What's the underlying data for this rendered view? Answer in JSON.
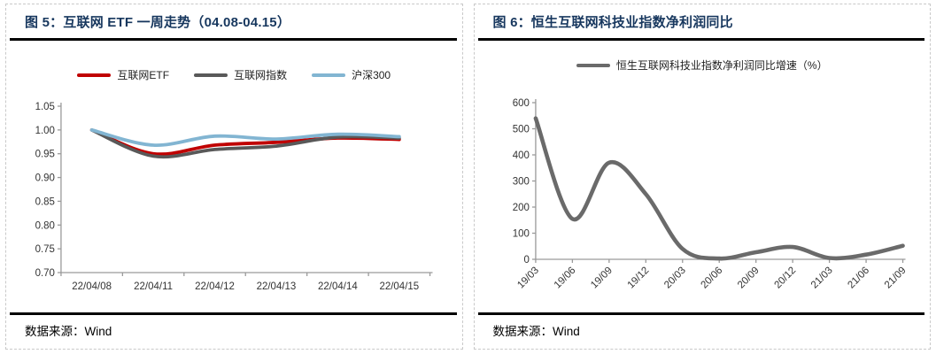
{
  "panels": [
    {
      "title": "图 5：互联网 ETF 一周走势（04.08-04.15）",
      "source_label": "数据来源：",
      "source_value": "Wind"
    },
    {
      "title": "图 6：恒生互联网科技业指数净利润同比",
      "source_label": "数据来源：",
      "source_value": "Wind"
    }
  ],
  "colors": {
    "title_navy": "#17375E",
    "axis_gray": "#9a9a9a",
    "tick_label": "#333333",
    "divider_black": "#000000",
    "etf_red": "#C00000",
    "index_gray": "#595959",
    "hs300_blue": "#82B5D2",
    "hsti_line_gray": "#6a6a6a"
  },
  "chart_data": [
    {
      "type": "line",
      "title": "互联网 ETF 一周走势（04.08-04.15）",
      "categories": [
        "22/04/08",
        "22/04/11",
        "22/04/12",
        "22/04/13",
        "22/04/14",
        "22/04/15"
      ],
      "series": [
        {
          "name": "互联网ETF",
          "color": "#C00000",
          "values": [
            1.0,
            0.95,
            0.968,
            0.974,
            0.983,
            0.98
          ]
        },
        {
          "name": "互联网指数",
          "color": "#595959",
          "values": [
            1.0,
            0.945,
            0.959,
            0.966,
            0.985,
            0.983
          ]
        },
        {
          "name": "沪深300",
          "color": "#82B5D2",
          "values": [
            1.0,
            0.968,
            0.987,
            0.981,
            0.991,
            0.986
          ]
        }
      ],
      "ylim": [
        0.7,
        1.05
      ],
      "ytick_step": 0.05,
      "ytick_decimals": 2,
      "x_mode": "between",
      "x_label_rotation": 0,
      "grid": false,
      "smooth": true,
      "line_width": 3.8,
      "legend_position": "top"
    },
    {
      "type": "line",
      "title": "恒生互联网科技业指数净利润同比",
      "categories": [
        "19/03",
        "19/06",
        "19/09",
        "19/12",
        "20/03",
        "20/06",
        "20/09",
        "20/12",
        "21/03",
        "21/06",
        "21/09"
      ],
      "series": [
        {
          "name": "恒生互联网科技业指数净利润同比增速（%）",
          "color": "#6a6a6a",
          "values": [
            540,
            155,
            370,
            250,
            40,
            3,
            27,
            47,
            5,
            18,
            52
          ]
        }
      ],
      "ylim": [
        0,
        600
      ],
      "ytick_step": 100,
      "ytick_decimals": 0,
      "x_mode": "on_ticks",
      "x_label_rotation": -45,
      "grid": false,
      "smooth": true,
      "line_width": 4.6,
      "legend_position": "top"
    }
  ]
}
